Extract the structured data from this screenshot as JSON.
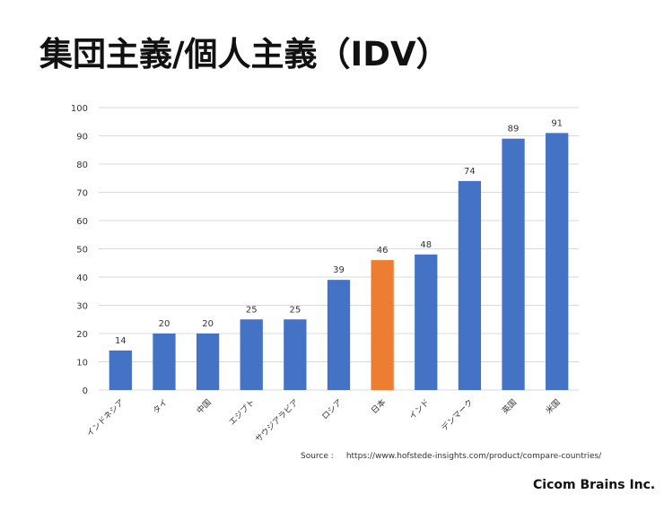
{
  "title": "集団主義/個人主義（IDV）",
  "source_label": "Source :",
  "source_url": "https://www.hofstede-insights.com/product/compare-countries/",
  "company": "Cicom Brains Inc.",
  "colors": {
    "bar": "#4472C4",
    "highlight": "#ED7D31",
    "grid": "#D9D9D9",
    "text": "#333333"
  },
  "chart_data": {
    "type": "bar",
    "categories": [
      "インドネシア",
      "タイ",
      "中国",
      "エジプト",
      "サウジアラビア",
      "ロシア",
      "日本",
      "インド",
      "デンマーク",
      "英国",
      "米国"
    ],
    "values": [
      14,
      20,
      20,
      25,
      25,
      39,
      46,
      48,
      74,
      89,
      91
    ],
    "highlight": "日本",
    "ylim": [
      0,
      100
    ],
    "yticks": [
      0,
      10,
      20,
      30,
      40,
      50,
      60,
      70,
      80,
      90,
      100
    ],
    "grid": true,
    "data_labels": true
  }
}
